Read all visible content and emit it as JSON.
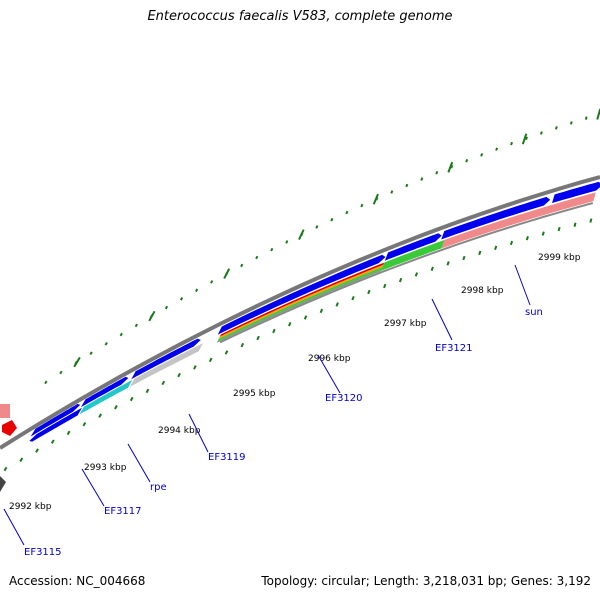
{
  "header": {
    "title": "Enterococcus faecalis V583, complete genome"
  },
  "footer": {
    "accession": "Accession: NC_004668",
    "summary": "Topology: circular; Length: 3,218,031 bp; Genes: 3,192"
  },
  "colors": {
    "cds_forward": "#0000ee",
    "backbone": "#777777",
    "tick": "#1a7a1a",
    "gene_label": "#0000cc",
    "cog_pink": "#f08a8a",
    "cog_cyan": "#22c8c8",
    "cog_gray": "#c4c4c4",
    "cog_green": "#39c939",
    "cog_red": "#e80000"
  },
  "scale_labels": [
    "2992 kbp",
    "2993 kbp",
    "2994 kbp",
    "2995 kbp",
    "2996 kbp",
    "2997 kbp",
    "2998 kbp",
    "2999 kbp"
  ],
  "gene_labels": [
    "EF3115",
    "EF3117",
    "rpe",
    "EF3119",
    "EF3120",
    "EF3121",
    "sun"
  ]
}
